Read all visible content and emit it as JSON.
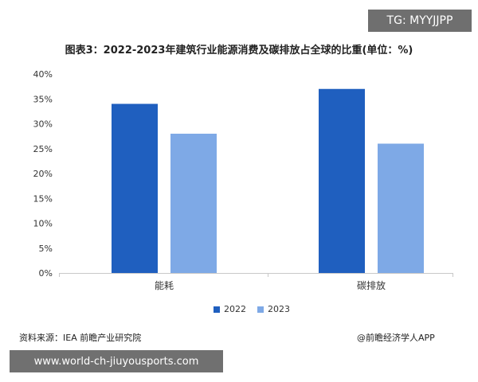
{
  "badge": "TG: MYYJJPP",
  "source": "资料来源：IEA 前瞻产业研究院",
  "brand": "@前瞻经济学人APP",
  "url_banner": "www.world-ch-jiuyousports.com",
  "colors": {
    "series_2022": "#1f5fbf",
    "series_2023": "#7ea9e6",
    "grid": "#e6e6e6",
    "axis": "#c8c8c8"
  },
  "chart_data": {
    "type": "bar",
    "title": "图表3：2022-2023年建筑行业能源消费及碳排放占全球的比重(单位：%)",
    "categories": [
      "能耗",
      "碳排放"
    ],
    "series": [
      {
        "name": "2022",
        "values": [
          34,
          37
        ]
      },
      {
        "name": "2023",
        "values": [
          28,
          26
        ]
      }
    ],
    "yticks": [
      "0%",
      "5%",
      "10%",
      "15%",
      "20%",
      "25%",
      "30%",
      "35%",
      "40%"
    ],
    "ylim": [
      0,
      40
    ],
    "grid": false,
    "legend": "bottom"
  }
}
